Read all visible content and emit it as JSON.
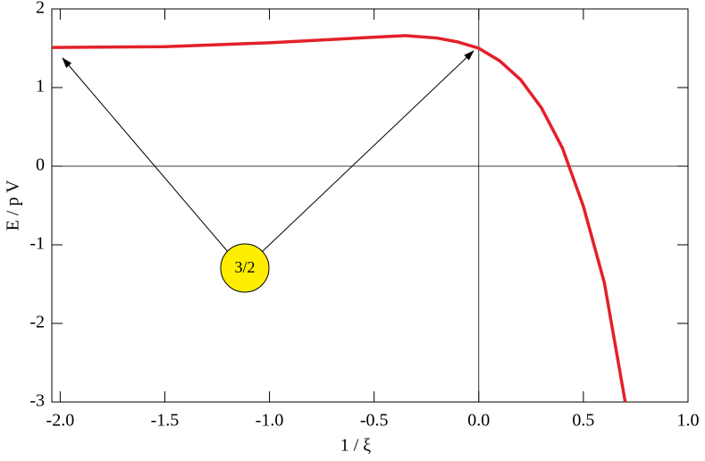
{
  "chart_data": {
    "type": "line",
    "x_label": "1 / ξ",
    "y_label": "E / p V",
    "series": [
      {
        "color": "#e3202a",
        "x": [
          -2.04,
          -1.5,
          -1.0,
          -0.5,
          -0.35,
          -0.2,
          -0.1,
          0.0,
          0.1,
          0.2,
          0.3,
          0.4,
          0.5,
          0.6,
          0.7
        ],
        "values": [
          1.51,
          1.52,
          1.57,
          1.64,
          1.66,
          1.63,
          1.58,
          1.5,
          1.34,
          1.1,
          0.74,
          0.23,
          -0.51,
          -1.48,
          -3.0
        ]
      }
    ],
    "xlim": [
      -2.04,
      1.0
    ],
    "ylim": [
      -3,
      2
    ],
    "xticks": [
      {
        "value": -2,
        "label": "-2.0"
      },
      {
        "value": -1.5,
        "label": "-1.5"
      },
      {
        "value": -1,
        "label": "-1.0"
      },
      {
        "value": -0.5,
        "label": "-0.5"
      },
      {
        "value": 0,
        "label": "0.0"
      },
      {
        "value": 0.5,
        "label": "0.5"
      },
      {
        "value": 1,
        "label": "1.0"
      }
    ],
    "yticks": [
      -3,
      -2,
      -1,
      0,
      1,
      2
    ],
    "zero_lines": true,
    "annotation": "3/2"
  }
}
